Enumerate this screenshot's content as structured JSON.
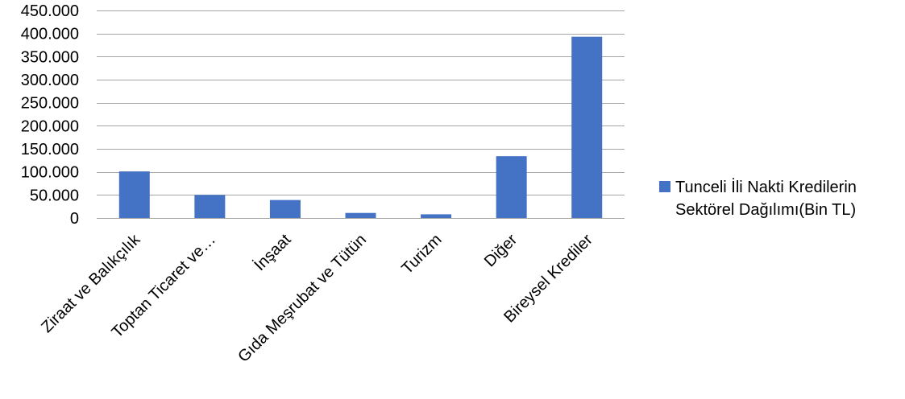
{
  "chart_data": {
    "type": "bar",
    "title": "",
    "xlabel": "",
    "ylabel": "",
    "categories": [
      "Ziraat ve Balıkçılık",
      "Toptan Ticaret ve…",
      "İnşaat",
      "Gıda Meşrubat ve Tütün",
      "Turizm",
      "Diğer",
      "Bireysel Krediler"
    ],
    "series": [
      {
        "name": "Tunceli İli Nakti Kredilerin Sektörel Dağılımı(Bin TL)",
        "values": [
          101000,
          50000,
          39000,
          11000,
          8000,
          134000,
          393000
        ],
        "color": "#4472c4"
      }
    ],
    "ylim": [
      0,
      450000
    ],
    "yticks": [
      0,
      50000,
      100000,
      150000,
      200000,
      250000,
      300000,
      350000,
      400000,
      450000
    ],
    "ytick_labels": [
      "0",
      "50.000",
      "100.000",
      "150.000",
      "200.000",
      "250.000",
      "300.000",
      "350.000",
      "400.000",
      "450.000"
    ],
    "grid": true,
    "legend_position": "right",
    "colors": {
      "bar": "#4472c4",
      "grid": "#a6a6a6"
    }
  }
}
